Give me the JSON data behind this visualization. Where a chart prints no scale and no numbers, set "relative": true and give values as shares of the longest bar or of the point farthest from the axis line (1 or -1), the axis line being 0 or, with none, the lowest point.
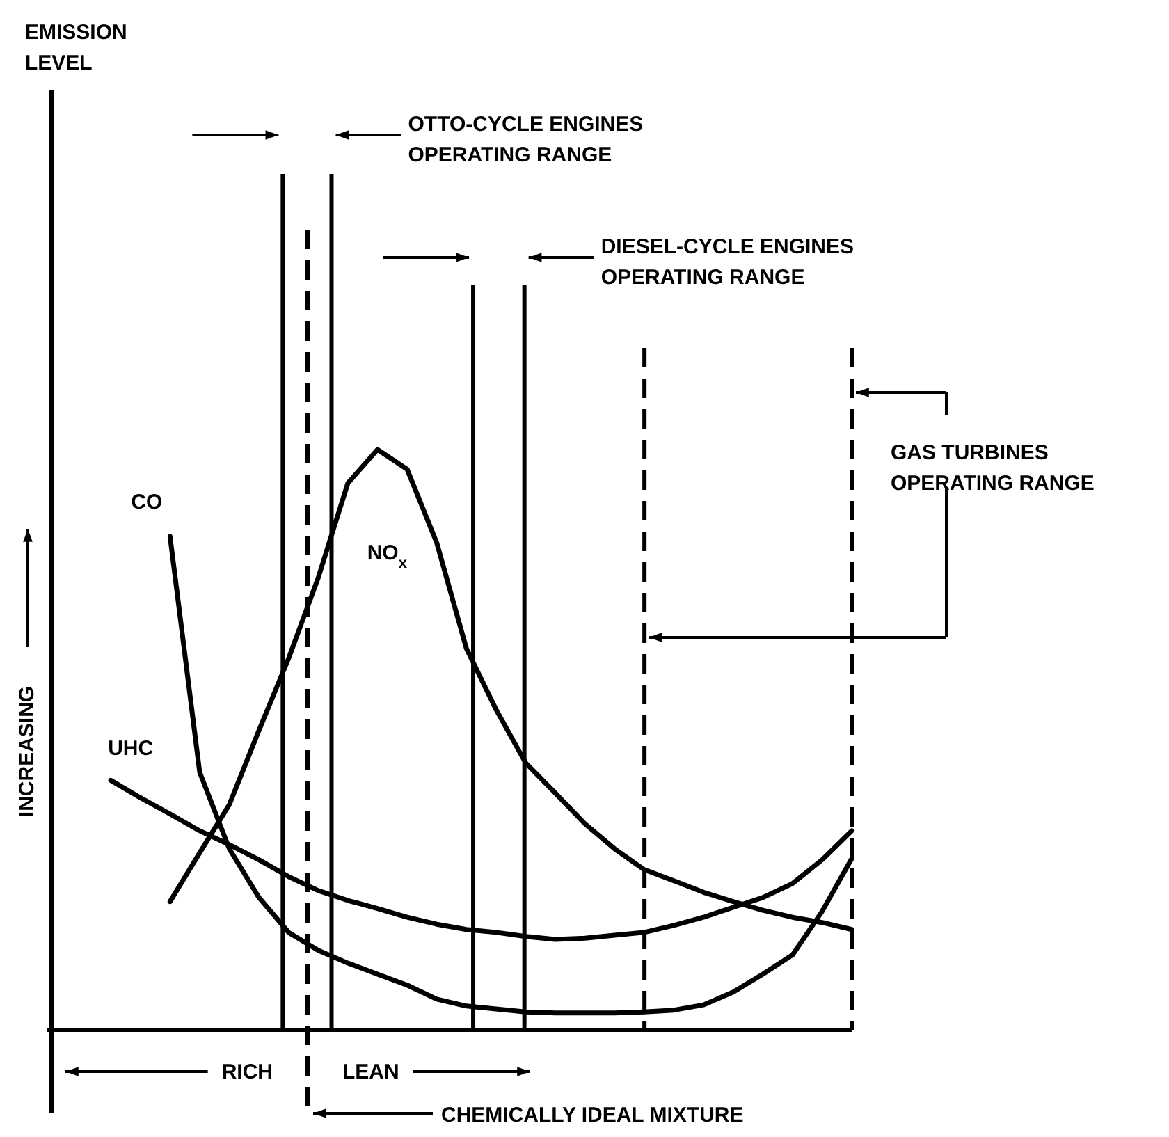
{
  "chart_data": {
    "type": "line",
    "relative": true,
    "categories": [
      null,
      null,
      null,
      null,
      null,
      null,
      null,
      null,
      null,
      null,
      null,
      null,
      null,
      null,
      null,
      null,
      null,
      null,
      null,
      null,
      null,
      null,
      null,
      null,
      null,
      null,
      null,
      null
    ],
    "tick_labels": false,
    "legend": false,
    "marker": "none",
    "line_style": "solid",
    "series": [
      {
        "name": "CO",
        "color": "#000000",
        "values": [
          null,
          null,
          null,
          null,
          0.85,
          0.444,
          0.312,
          0.228,
          0.168,
          0.137,
          0.115,
          0.096,
          0.077,
          0.053,
          0.041,
          0.036,
          0.031,
          0.029,
          0.029,
          0.029,
          0.031,
          0.034,
          0.043,
          0.065,
          0.096,
          0.129,
          0.204,
          0.295
        ]
      },
      {
        "name": "UHC",
        "color": "#000000",
        "values": [
          null,
          null,
          0.43,
          0.4,
          0.372,
          0.343,
          0.319,
          0.293,
          0.264,
          0.24,
          0.223,
          0.209,
          0.194,
          0.182,
          0.173,
          0.168,
          0.161,
          0.156,
          0.158,
          0.163,
          0.168,
          0.18,
          0.194,
          0.211,
          0.228,
          0.252,
          0.293,
          0.343
        ]
      },
      {
        "name": "NO$_{x}$",
        "color": "#000000",
        "values": [
          null,
          null,
          null,
          null,
          0.221,
          0.305,
          0.388,
          0.516,
          0.64,
          0.779,
          0.942,
          1,
          0.966,
          0.839,
          0.657,
          0.552,
          0.46,
          0.408,
          0.355,
          0.312,
          0.276,
          0.257,
          0.237,
          0.221,
          0.206,
          0.194,
          0.185,
          0.173
        ]
      }
    ],
    "annotations": [
      "EMISSION\nLEVEL",
      "INCREASING",
      "OTTO-CYCLE ENGINES\nOPERATING RANGE",
      "DIESEL-CYCLE ENGINES\nOPERATING RANGE",
      "GAS TURBINES\nOPERATING RANGE",
      "CHEMICALLY IDEAL MIXTURE",
      "RICH",
      "LEAN"
    ]
  }
}
